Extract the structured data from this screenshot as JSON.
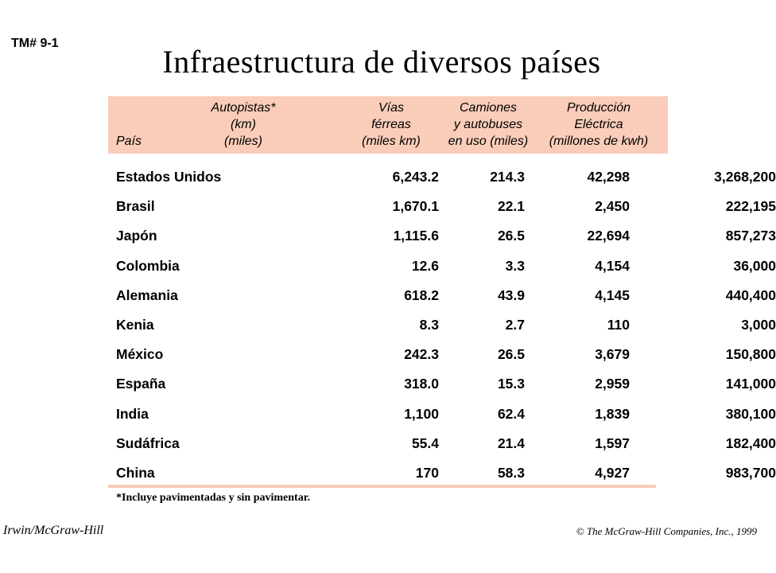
{
  "tm_label": "TM# 9-1",
  "title": "Infraestructura de diversos países",
  "header": {
    "pais": "País",
    "autopistas": [
      "Autopistas*",
      "(km)",
      "(miles)"
    ],
    "vias": [
      "Vías",
      "férreas",
      "(miles km)"
    ],
    "camiones": [
      "Camiones",
      "y autobuses",
      "en uso (miles)"
    ],
    "produccion": [
      "Producción",
      "Eléctrica",
      "(millones de kwh)"
    ]
  },
  "rows": [
    {
      "country": "Estados Unidos",
      "autopistas": "6,243.2",
      "vias": "214.3",
      "camiones": "42,298",
      "produccion": "3,268,200"
    },
    {
      "country": "Brasil",
      "autopistas": "1,670.1",
      "vias": "22.1",
      "camiones": "2,450",
      "produccion": "222,195"
    },
    {
      "country": "Japón",
      "autopistas": "1,115.6",
      "vias": "26.5",
      "camiones": "22,694",
      "produccion": "857,273"
    },
    {
      "country": "Colombia",
      "autopistas": "12.6",
      "vias": "3.3",
      "camiones": "4,154",
      "produccion": "36,000"
    },
    {
      "country": "Alemania",
      "autopistas": "618.2",
      "vias": "43.9",
      "camiones": "4,145",
      "produccion": "440,400"
    },
    {
      "country": "Kenia",
      "autopistas": "8.3",
      "vias": "2.7",
      "camiones": "110",
      "produccion": "3,000"
    },
    {
      "country": "México",
      "autopistas": "242.3",
      "vias": "26.5",
      "camiones": "3,679",
      "produccion": "150,800"
    },
    {
      "country": "España",
      "autopistas": "318.0",
      "vias": "15.3",
      "camiones": "2,959",
      "produccion": "141,000"
    },
    {
      "country": "India",
      "autopistas": "1,100",
      "vias": "62.4",
      "camiones": "1,839",
      "produccion": "380,100"
    },
    {
      "country": "Sudáfrica",
      "autopistas": "55.4",
      "vias": "21.4",
      "camiones": "1,597",
      "produccion": "182,400"
    },
    {
      "country": "China",
      "autopistas": "170",
      "vias": "58.3",
      "camiones": "4,927",
      "produccion": "983,700"
    }
  ],
  "footnote": "*Incluye pavimentadas y sin pavimentar.",
  "footer_left": "Irwin/McGraw-Hill",
  "footer_right": "© The McGraw-Hill Companies, Inc., 1999",
  "colors": {
    "header_band": "#f9cdb9"
  }
}
